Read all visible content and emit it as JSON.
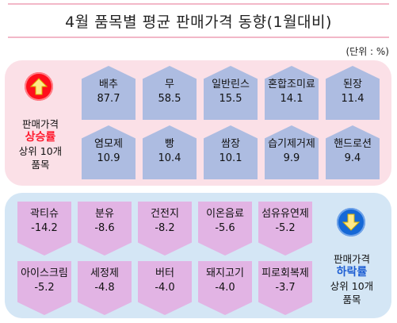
{
  "title": "4월 품목별 평균 판매가격 동향(1월대비)",
  "unit": "(단위 : %)",
  "rise": {
    "label_line1": "판매가격",
    "label_highlight": "상승률",
    "label_line3": "상위 10개",
    "label_line4": "품목",
    "arrow_color": "#ff0e1b",
    "items": [
      {
        "name": "배추",
        "value": "87.7"
      },
      {
        "name": "무",
        "value": "58.5"
      },
      {
        "name": "일반린스",
        "value": "15.5"
      },
      {
        "name": "혼합조미료",
        "value": "14.1"
      },
      {
        "name": "된장",
        "value": "11.4"
      },
      {
        "name": "염모제",
        "value": "10.9"
      },
      {
        "name": "빵",
        "value": "10.4"
      },
      {
        "name": "쌈장",
        "value": "10.1"
      },
      {
        "name": "습기제거제",
        "value": "9.9"
      },
      {
        "name": "핸드로션",
        "value": "9.4"
      }
    ]
  },
  "fall": {
    "label_line1": "판매가격",
    "label_highlight": "하락률",
    "label_line3": "상위 10개",
    "label_line4": "품목",
    "arrow_color": "#1568d6",
    "items": [
      {
        "name": "곽티슈",
        "value": "-14.2"
      },
      {
        "name": "분유",
        "value": "-8.6"
      },
      {
        "name": "건전지",
        "value": "-8.2"
      },
      {
        "name": "이온음료",
        "value": "-5.6"
      },
      {
        "name": "섬유유연제",
        "value": "-5.2"
      },
      {
        "name": "아이스크림",
        "value": "-5.2"
      },
      {
        "name": "세정제",
        "value": "-4.8"
      },
      {
        "name": "버터",
        "value": "-4.0"
      },
      {
        "name": "돼지고기",
        "value": "-4.0"
      },
      {
        "name": "피로회복제",
        "value": "-3.7"
      }
    ]
  }
}
